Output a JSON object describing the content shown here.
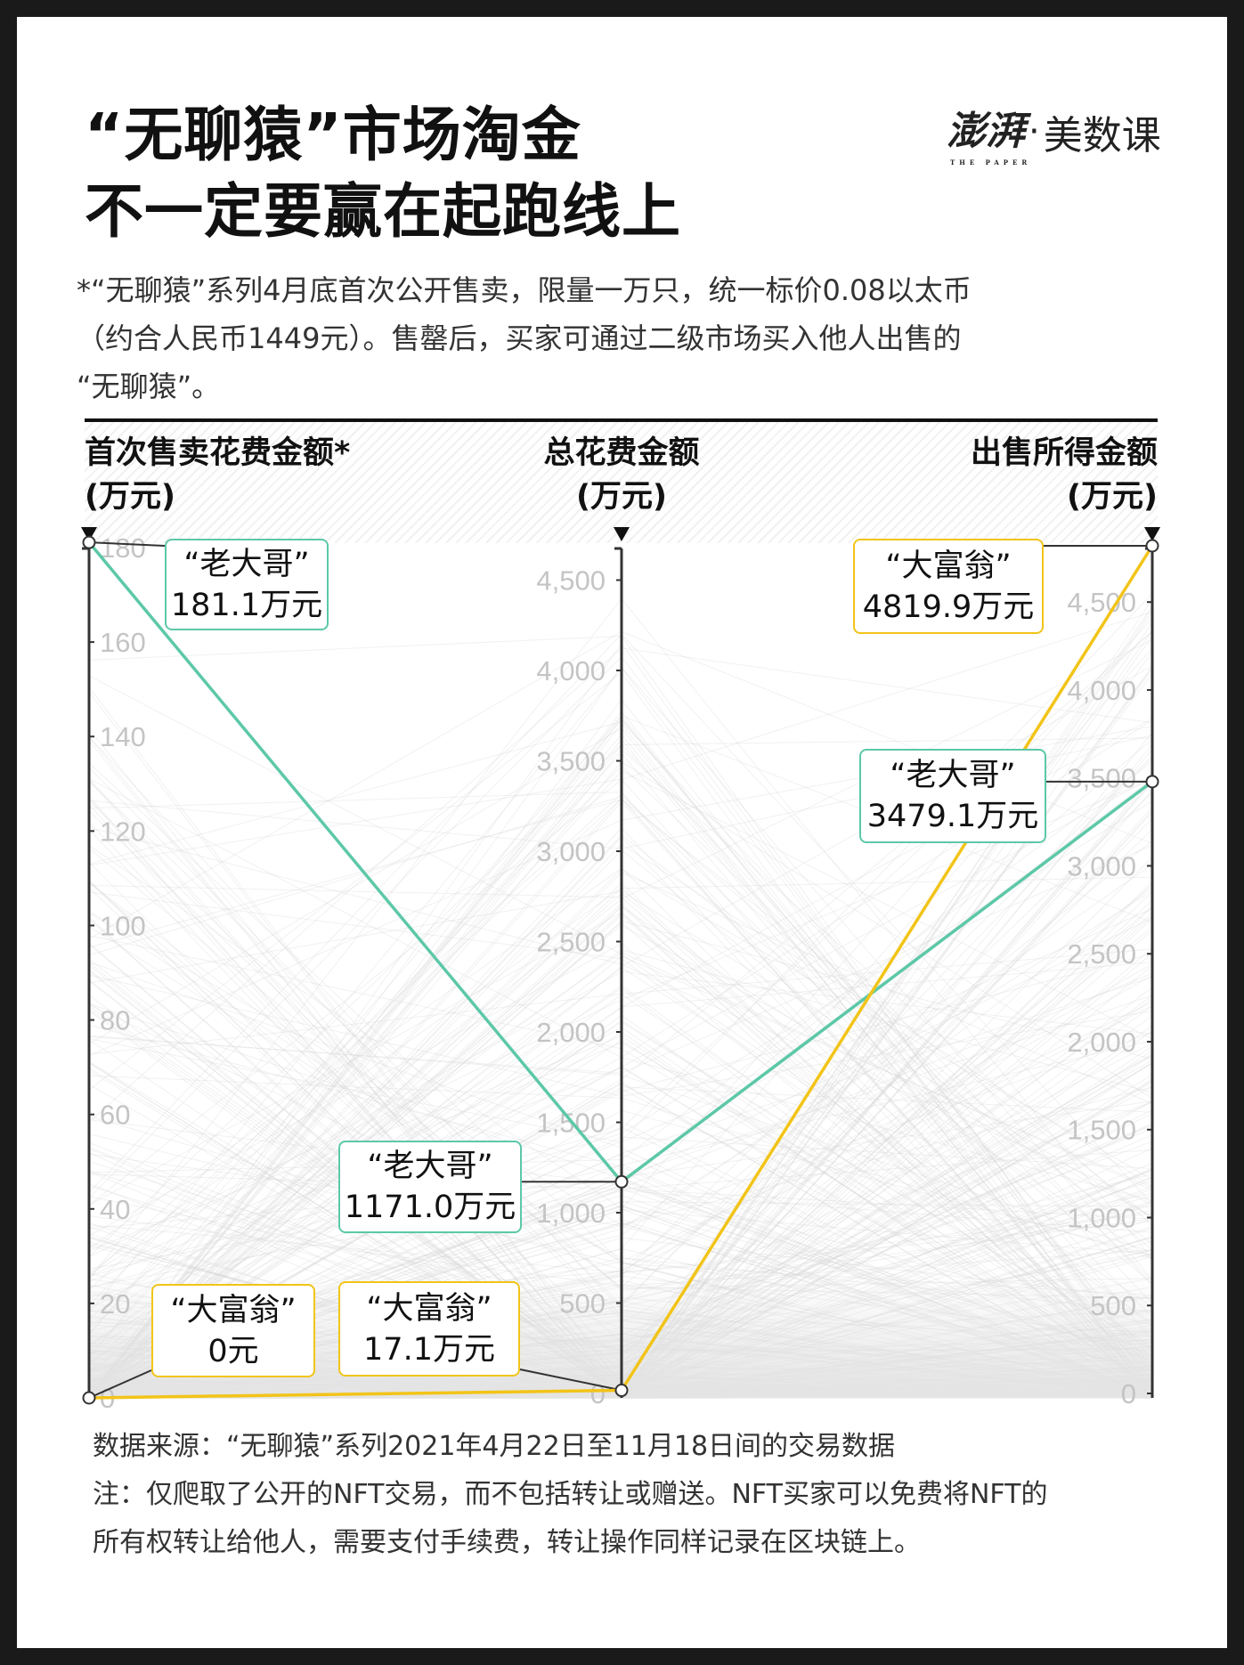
{
  "title": {
    "line1": "“无聊猿”市场淘金",
    "line2": "不一定要赢在起跑线上"
  },
  "logo": {
    "brand": "澎湃",
    "brand_sub": "THE PAPER",
    "separator": "·",
    "section": "美数课"
  },
  "subtitle": [
    "*“无聊猿”系列4月底首次公开售卖，限量一万只，统一标价0.08以太币",
    "（约合人民币1449元）。售罄后，买家可通过二级市场买入他人出售的",
    "“无聊猿”。"
  ],
  "colors": {
    "laodage": "#5cc8a8",
    "dafuweng": "#f2c418",
    "background_lines": "#d6d6d6",
    "axis": "#333333"
  },
  "chart_data": {
    "type": "parallel-coordinates",
    "axes": [
      {
        "label_line1": "首次售卖花费金额*",
        "label_line2": "(万元)",
        "range": [
          0,
          180
        ],
        "ticks": [
          0,
          20,
          40,
          60,
          80,
          100,
          120,
          140,
          160,
          180
        ],
        "tick_labels": [
          "0",
          "20",
          "40",
          "60",
          "80",
          "100",
          "120",
          "140",
          "160",
          "180"
        ]
      },
      {
        "label_line1": "总花费金额",
        "label_line2": "(万元)",
        "range": [
          0,
          4675
        ],
        "ticks": [
          0,
          500,
          1000,
          1500,
          2000,
          2500,
          3000,
          3500,
          4000,
          4500
        ],
        "tick_labels": [
          "0",
          "500",
          "1,000",
          "1,500",
          "2,000",
          "2,500",
          "3,000",
          "3,500",
          "4,000",
          "4,500"
        ]
      },
      {
        "label_line1": "出售所得金额",
        "label_line2": "(万元)",
        "range": [
          0,
          4819.9
        ],
        "ticks": [
          0,
          500,
          1000,
          1500,
          2000,
          2500,
          3000,
          3500,
          4000,
          4500
        ],
        "tick_labels": [
          "0",
          "500",
          "1,000",
          "1,500",
          "2,000",
          "2,500",
          "3,000",
          "3,500",
          "4,000",
          "4,500"
        ]
      }
    ],
    "series": [
      {
        "name": "“老大哥”",
        "color_key": "laodage",
        "values": [
          181.1,
          1171.0,
          3479.1
        ],
        "labels": [
          "181.1万元",
          "1171.0万元",
          "3479.1万元"
        ]
      },
      {
        "name": "“大富翁”",
        "color_key": "dafuweng",
        "values": [
          0,
          17.1,
          4819.9
        ],
        "labels": [
          "0元",
          "17.1万元",
          "4819.9万元"
        ]
      }
    ]
  },
  "footer": [
    "数据来源：“无聊猿”系列2021年4月22日至11月18日间的交易数据",
    "注：仅爬取了公开的NFT交易，而不包括转让或赠送。NFT买家可以免费将NFT的",
    "所有权转让给他人，需要支付手续费，转让操作同样记录在区块链上。"
  ]
}
